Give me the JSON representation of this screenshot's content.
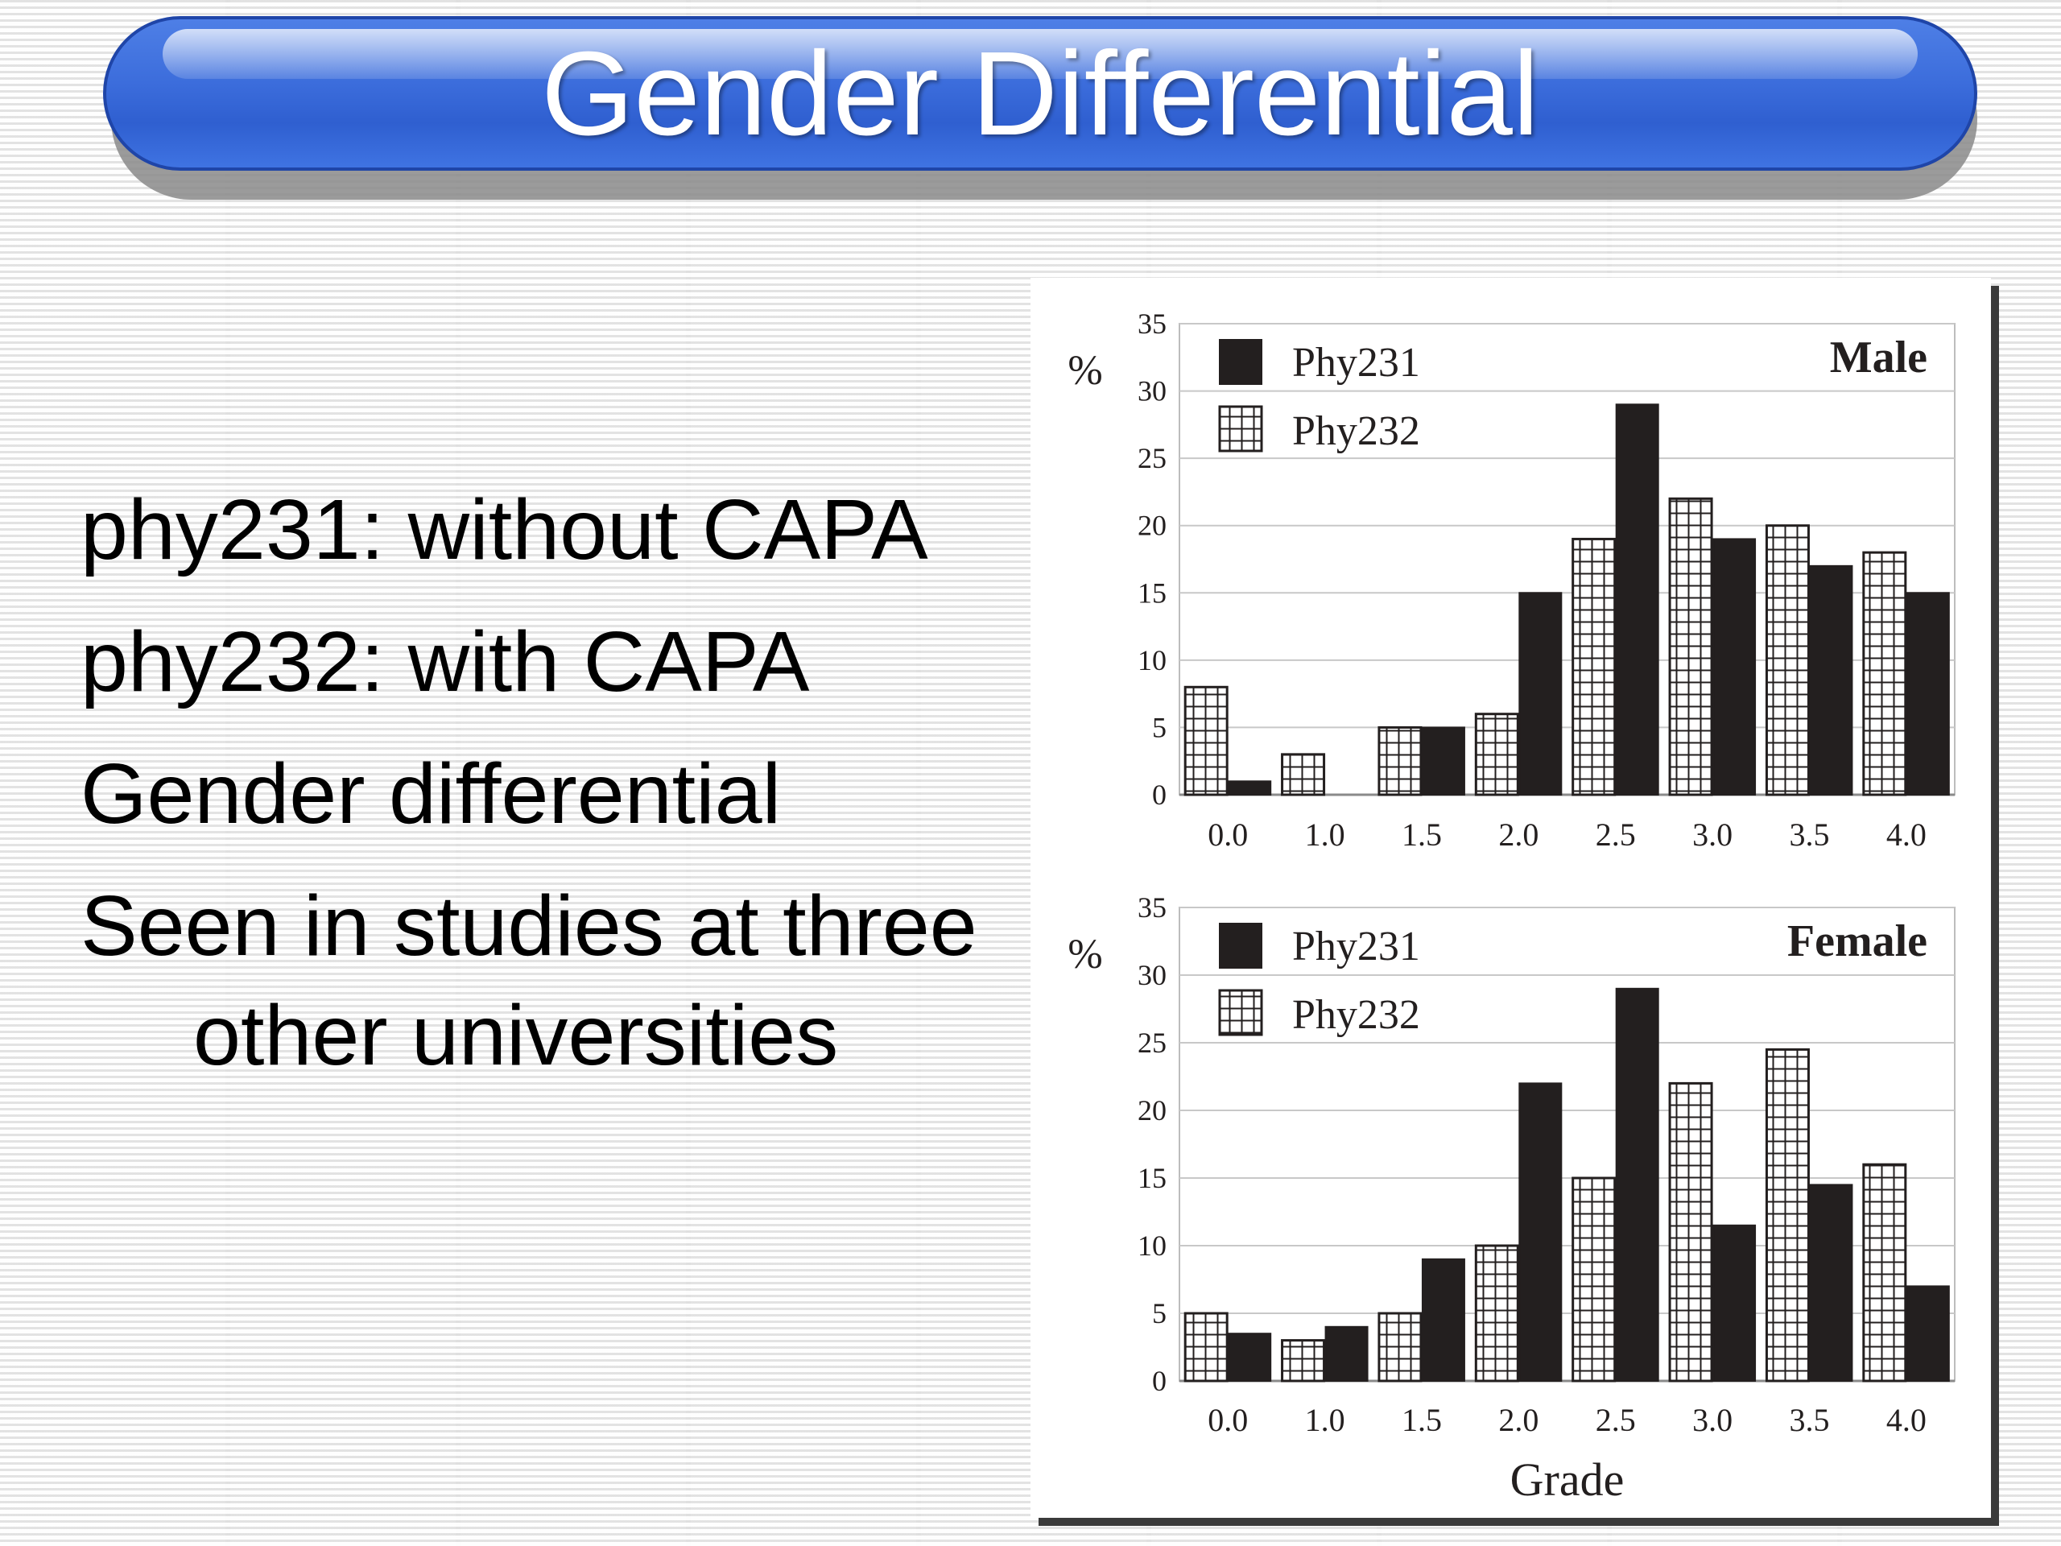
{
  "slide": {
    "title": "Gender Differential",
    "bullets": [
      "phy231: without CAPA",
      "phy232: with CAPA",
      "Gender differential",
      "Seen in studies at three other universities"
    ]
  },
  "chart_data": [
    {
      "type": "bar",
      "title": "Male",
      "ylabel": "%",
      "xlabel": "",
      "ylim": [
        0,
        35
      ],
      "yticks": [
        0,
        5,
        10,
        15,
        20,
        25,
        30,
        35
      ],
      "categories": [
        "0.0",
        "1.0",
        "1.5",
        "2.0",
        "2.5",
        "3.0",
        "3.5",
        "4.0"
      ],
      "legend_position": "top-left",
      "grid": "horizontal",
      "series": [
        {
          "name": "Phy231",
          "style": "solid",
          "color": "#231f1f",
          "values": [
            1,
            0,
            5,
            15,
            29,
            19,
            17,
            15
          ]
        },
        {
          "name": "Phy232",
          "style": "hatched",
          "color": "#ffffff",
          "values": [
            8,
            3,
            5,
            6,
            19,
            22,
            20,
            18
          ]
        }
      ]
    },
    {
      "type": "bar",
      "title": "Female",
      "ylabel": "%",
      "xlabel": "Grade",
      "ylim": [
        0,
        35
      ],
      "yticks": [
        0,
        5,
        10,
        15,
        20,
        25,
        30,
        35
      ],
      "categories": [
        "0.0",
        "1.0",
        "1.5",
        "2.0",
        "2.5",
        "3.0",
        "3.5",
        "4.0"
      ],
      "legend_position": "top-left",
      "grid": "horizontal",
      "series": [
        {
          "name": "Phy231",
          "style": "solid",
          "color": "#231f1f",
          "values": [
            3.5,
            4,
            9,
            22,
            29,
            11.5,
            14.5,
            7
          ]
        },
        {
          "name": "Phy232",
          "style": "hatched",
          "color": "#ffffff",
          "values": [
            5,
            3,
            5,
            10,
            15,
            22,
            24.5,
            16
          ]
        }
      ]
    }
  ]
}
